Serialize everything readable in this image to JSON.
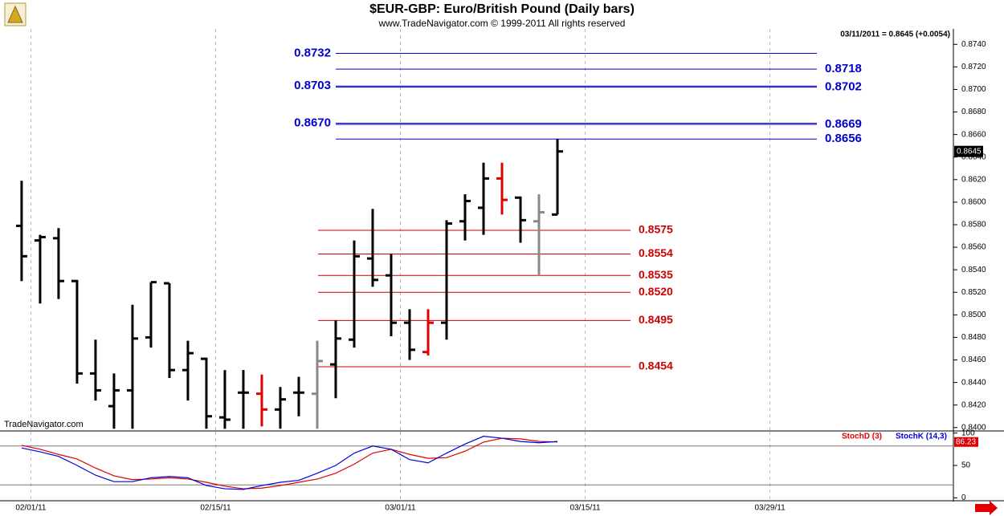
{
  "chart_data": [
    {
      "type": "ohlc",
      "title": "$EUR-GBP:  Euro/British Pound  (Daily bars)",
      "subtitle": "www.TradeNavigator.com © 1999-2011 All rights reserved",
      "info": "03/11/2011 = 0.8645 (+0.0054)",
      "watermark": "TradeNavigator.com",
      "open": [
        0.8579,
        0.8566,
        0.8568,
        0.853,
        0.8448,
        0.8419,
        0.8433,
        0.848,
        0.8528,
        0.8451,
        0.8461,
        0.8409,
        0.8431,
        0.843,
        0.8416,
        0.8431,
        0.843,
        0.8456,
        0.8478,
        0.855,
        0.8535,
        0.8493,
        0.8467,
        0.8493,
        0.8583,
        0.8595,
        0.8621,
        0.8604,
        0.8583,
        0.8589
      ],
      "high": [
        0.8619,
        0.8571,
        0.8577,
        0.8531,
        0.8478,
        0.8448,
        0.8509,
        0.8529,
        0.8528,
        0.8477,
        0.8462,
        0.8451,
        0.8451,
        0.8447,
        0.8436,
        0.8445,
        0.8477,
        0.8495,
        0.8566,
        0.8594,
        0.8554,
        0.8505,
        0.8505,
        0.8584,
        0.8607,
        0.8635,
        0.8635,
        0.8605,
        0.8607,
        0.8656
      ],
      "low": [
        0.853,
        0.851,
        0.8514,
        0.8439,
        0.8424,
        0.8399,
        0.8399,
        0.8471,
        0.8444,
        0.8424,
        0.8399,
        0.8399,
        0.8399,
        0.8401,
        0.8399,
        0.841,
        0.8399,
        0.8426,
        0.8471,
        0.8525,
        0.8481,
        0.846,
        0.8464,
        0.8478,
        0.8566,
        0.8571,
        0.8589,
        0.8564,
        0.8535,
        0.8589
      ],
      "close": [
        0.8552,
        0.8569,
        0.853,
        0.8448,
        0.8433,
        0.8433,
        0.8479,
        0.8529,
        0.8451,
        0.8466,
        0.841,
        0.8407,
        0.8431,
        0.8416,
        0.8425,
        0.8431,
        0.8459,
        0.8479,
        0.8552,
        0.8531,
        0.8493,
        0.8469,
        0.8493,
        0.8581,
        0.8601,
        0.8621,
        0.8602,
        0.8584,
        0.8591,
        0.8645
      ],
      "bar_colors": [
        "#000",
        "#000",
        "#000",
        "#000",
        "#000",
        "#000",
        "#000",
        "#000",
        "#000",
        "#000",
        "#000",
        "#000",
        "#000",
        "#e00000",
        "#000",
        "#000",
        "#888",
        "#000",
        "#000",
        "#000",
        "#000",
        "#000",
        "#e00000",
        "#000",
        "#000",
        "#000",
        "#e00000",
        "#000",
        "#888",
        "#000"
      ],
      "xlim": [
        -1.17,
        50.43
      ],
      "ylim": [
        0.8397,
        0.8758
      ],
      "yticks": [
        {
          "value": 0.84,
          "label": "0.8400"
        },
        {
          "value": 0.842,
          "label": "0.8420"
        },
        {
          "value": 0.844,
          "label": "0.8440"
        },
        {
          "value": 0.846,
          "label": "0.8460"
        },
        {
          "value": 0.848,
          "label": "0.8480"
        },
        {
          "value": 0.85,
          "label": "0.8500"
        },
        {
          "value": 0.852,
          "label": "0.8520"
        },
        {
          "value": 0.854,
          "label": "0.8540"
        },
        {
          "value": 0.856,
          "label": "0.8560"
        },
        {
          "value": 0.858,
          "label": "0.8580"
        },
        {
          "value": 0.86,
          "label": "0.8600"
        },
        {
          "value": 0.862,
          "label": "0.8620"
        },
        {
          "value": 0.864,
          "label": "0.8640"
        },
        {
          "value": 0.866,
          "label": "0.8660"
        },
        {
          "value": 0.868,
          "label": "0.8680"
        },
        {
          "value": 0.87,
          "label": "0.8700"
        },
        {
          "value": 0.872,
          "label": "0.8720"
        },
        {
          "value": 0.874,
          "label": "0.8740"
        }
      ],
      "levels": [
        {
          "value": 0.8732,
          "label": "0.8732",
          "color": "#0000cc",
          "label_side": "left"
        },
        {
          "value": 0.8718,
          "label": "0.8718",
          "color": "#0000cc",
          "label_side": "right"
        },
        {
          "value": 0.8703,
          "label": "0.8703",
          "color": "#0000cc",
          "label_side": "left"
        },
        {
          "value": 0.8702,
          "label": "0.8702",
          "color": "#0000cc",
          "label_side": "right"
        },
        {
          "value": 0.867,
          "label": "0.8670",
          "color": "#0000cc",
          "label_side": "left"
        },
        {
          "value": 0.8669,
          "label": "0.8669",
          "color": "#0000cc",
          "label_side": "right"
        },
        {
          "value": 0.8656,
          "label": "0.8656",
          "color": "#0000cc",
          "label_side": "right"
        },
        {
          "value": 0.8575,
          "label": "0.8575",
          "color": "#cc0000",
          "label_side": "right"
        },
        {
          "value": 0.8554,
          "label": "0.8554",
          "color": "#cc0000",
          "label_side": "right"
        },
        {
          "value": 0.8535,
          "label": "0.8535",
          "color": "#cc0000",
          "label_side": "right"
        },
        {
          "value": 0.852,
          "label": "0.8520",
          "color": "#cc0000",
          "label_side": "right"
        },
        {
          "value": 0.8495,
          "label": "0.8495",
          "color": "#cc0000",
          "label_side": "right"
        },
        {
          "value": 0.8454,
          "label": "0.8454",
          "color": "#cc0000",
          "label_side": "right"
        }
      ]
    },
    {
      "type": "line",
      "xlim": [
        -1.17,
        50.43
      ],
      "xticks": [
        {
          "value": 0.5,
          "label": "02/01/11"
        },
        {
          "value": 10.5,
          "label": "02/15/11"
        },
        {
          "value": 20.5,
          "label": "03/01/11"
        },
        {
          "value": 30.5,
          "label": "03/15/11"
        },
        {
          "value": 40.5,
          "label": "03/29/11"
        }
      ],
      "ylim": [
        -2,
        102
      ],
      "yticks": [
        0,
        50,
        100
      ],
      "levels": [
        80,
        20
      ],
      "series": [
        {
          "name": "StochD (3)",
          "color": "#dd0000",
          "values": [
            81,
            75,
            67,
            60,
            46,
            34,
            28,
            29,
            31,
            29,
            24,
            18,
            14,
            15,
            19,
            24,
            29,
            38,
            52,
            69,
            75,
            67,
            61,
            62,
            72,
            86,
            92,
            91,
            87,
            86.23
          ]
        },
        {
          "name": "StochK (14,3)",
          "color": "#0000dd",
          "values": [
            77,
            71,
            64,
            50,
            35,
            25,
            25,
            31,
            33,
            31,
            19,
            14,
            13,
            19,
            24,
            27,
            38,
            50,
            69,
            80,
            75,
            59,
            54,
            69,
            83,
            95,
            92,
            87,
            85,
            87
          ]
        }
      ]
    }
  ]
}
